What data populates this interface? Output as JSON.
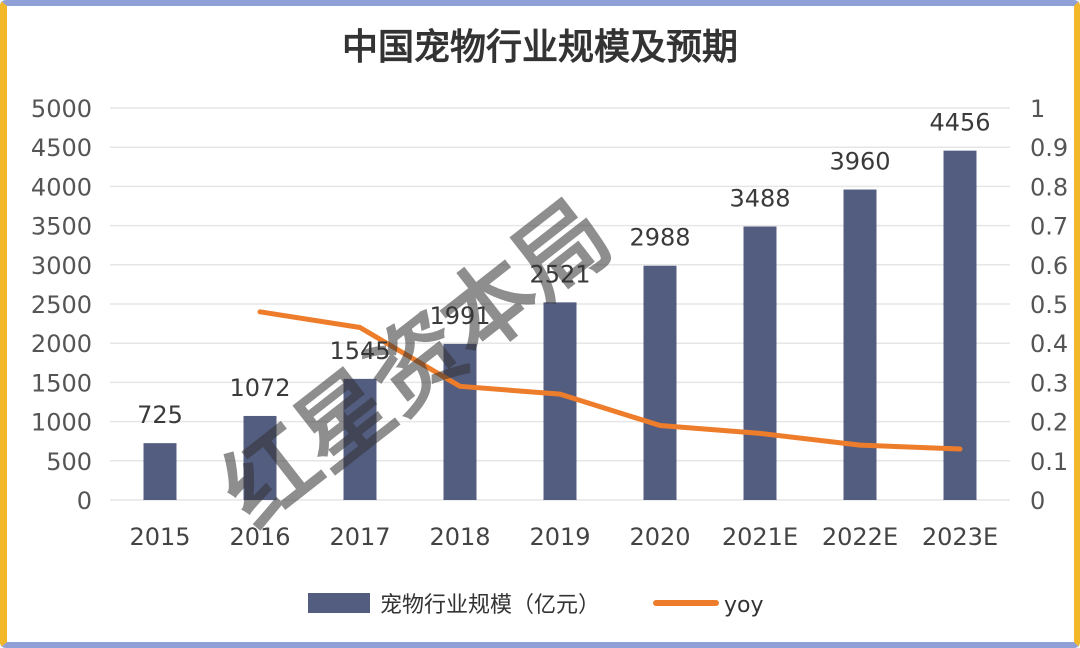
{
  "title": "中国宠物行业规模及预期",
  "watermark": "红星资本局",
  "colors": {
    "bar": "#535d80",
    "line": "#ee7d2b",
    "grid": "#e6e6e6",
    "border_top": "#8fa0d6",
    "border_side": "#f2b829"
  },
  "chart_data": {
    "type": "bar",
    "title": "中国宠物行业规模及预期",
    "categories": [
      "2015",
      "2016",
      "2017",
      "2018",
      "2019",
      "2020",
      "2021E",
      "2022E",
      "2023E"
    ],
    "series": [
      {
        "name": "宠物行业规模（亿元）",
        "type": "bar",
        "axis": "left",
        "values": [
          725,
          1072,
          1545,
          1991,
          2521,
          2988,
          3488,
          3960,
          4456
        ],
        "data_labels": [
          "725",
          "1072",
          "1545",
          "1991",
          "2521",
          "2988",
          "3488",
          "3960",
          "4456"
        ]
      },
      {
        "name": "yoy",
        "type": "line",
        "axis": "right",
        "values": [
          null,
          0.48,
          0.44,
          0.29,
          0.27,
          0.19,
          0.17,
          0.14,
          0.13
        ]
      }
    ],
    "ylim_left": [
      0,
      5000
    ],
    "yticks_left": [
      "0",
      "500",
      "1000",
      "1500",
      "2000",
      "2500",
      "3000",
      "3500",
      "4000",
      "4500",
      "5000"
    ],
    "ylim_right": [
      0,
      1
    ],
    "yticks_right": [
      "0",
      "0.1",
      "0.2",
      "0.3",
      "0.4",
      "0.5",
      "0.6",
      "0.7",
      "0.8",
      "0.9",
      "1"
    ],
    "grid": true,
    "legend_position": "bottom"
  }
}
